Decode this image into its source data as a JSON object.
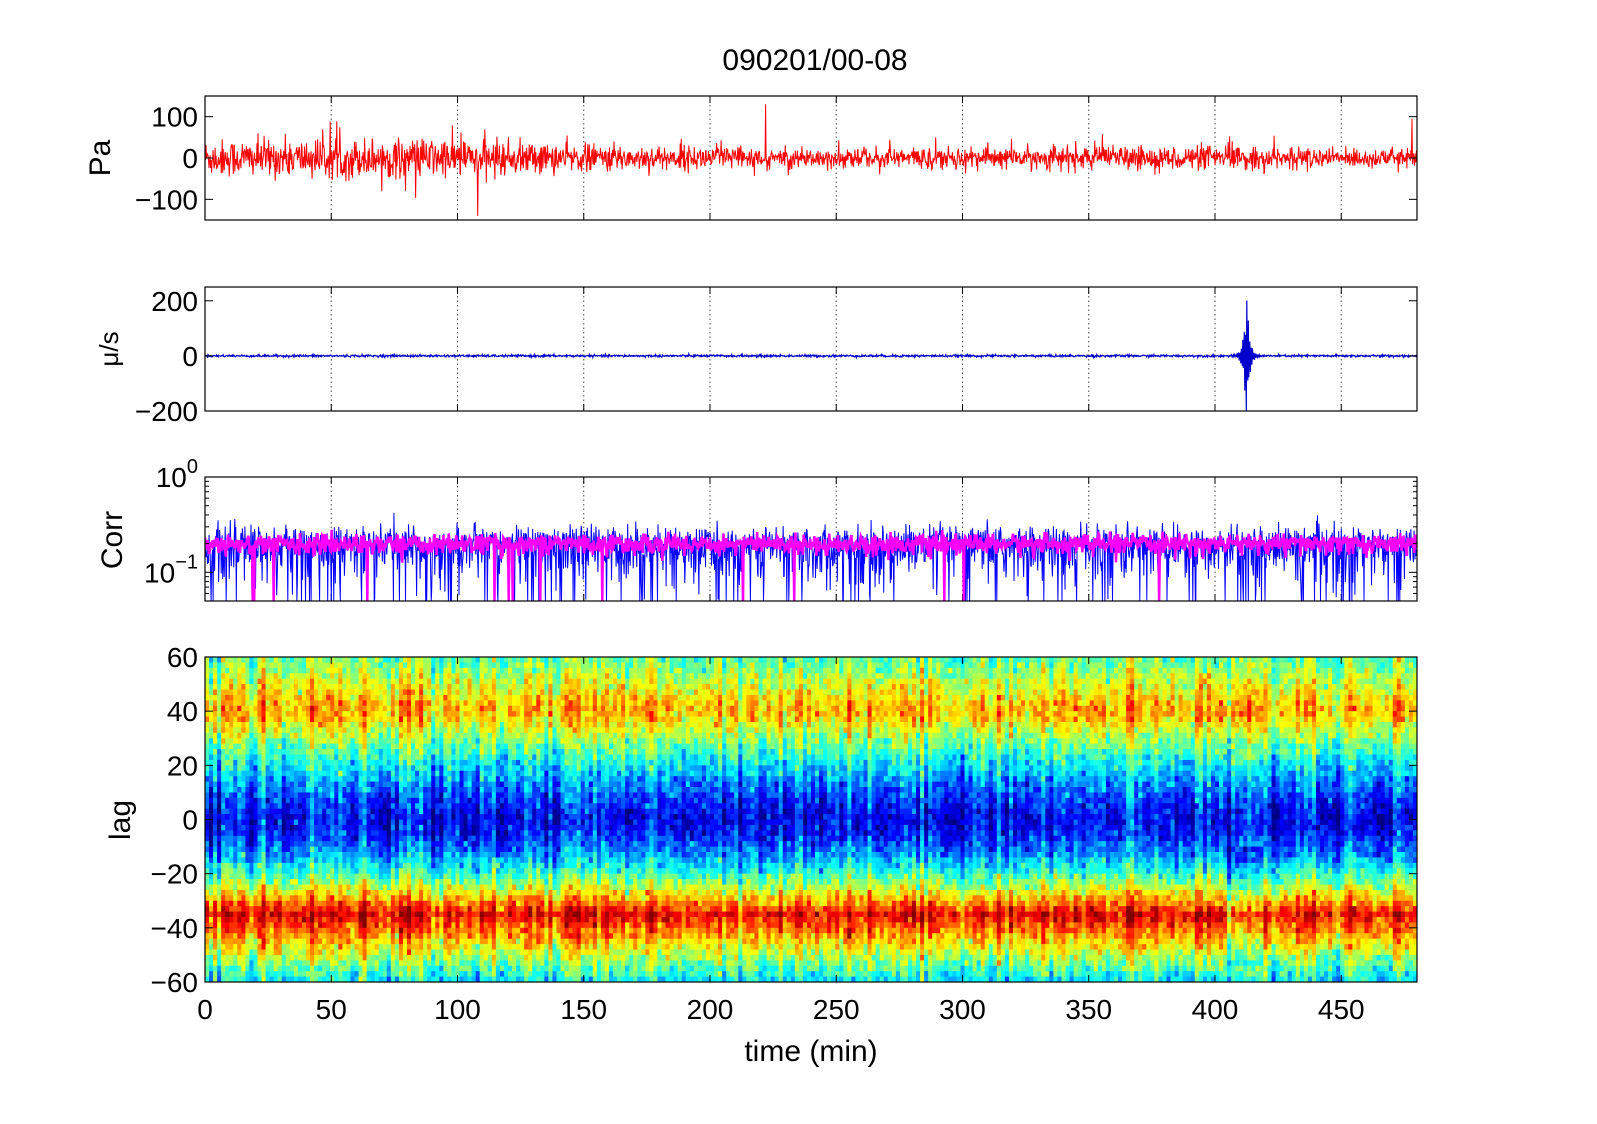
{
  "figure": {
    "title": "090201/00-08",
    "xlabel": "time (min)",
    "xlim": [
      0,
      480
    ],
    "xticks": [
      0,
      50,
      100,
      150,
      200,
      250,
      300,
      350,
      400,
      450
    ]
  },
  "chart_data": [
    {
      "type": "line",
      "name": "pressure",
      "ylabel": "Pa",
      "ylim": [
        -150,
        150
      ],
      "yticks": [
        100,
        0,
        -100
      ],
      "color": "#ff0000",
      "grid": true,
      "signal": {
        "kind": "noise",
        "base_amplitude": 45,
        "envelope": [
          [
            0,
            1.1
          ],
          [
            100,
            1.2
          ],
          [
            150,
            0.8
          ],
          [
            250,
            0.6
          ],
          [
            330,
            0.7
          ],
          [
            400,
            0.7
          ],
          [
            480,
            0.5
          ]
        ],
        "spikes": [
          [
            108,
            140
          ],
          [
            222,
            130
          ],
          [
            478,
            95
          ]
        ]
      }
    },
    {
      "type": "line",
      "name": "velocity",
      "ylabel": "μ/s",
      "ylim": [
        -200,
        250
      ],
      "yticks": [
        200,
        0,
        -200
      ],
      "color": "#0000cc",
      "grid": true,
      "signal": {
        "kind": "quiet-with-burst",
        "base_amplitude": 2,
        "burst_center": 412.5,
        "burst_peak": 250,
        "burst_width": 3
      }
    },
    {
      "type": "line",
      "name": "correlation",
      "ylabel": "Corr",
      "yscale": "log",
      "ylim": [
        0.05,
        1
      ],
      "yticks": [
        {
          "value": 1,
          "base": "10",
          "exp": "0"
        },
        {
          "value": 0.1,
          "base": "10",
          "exp": "−1"
        }
      ],
      "grid": true,
      "series": [
        {
          "color": "#0000ff",
          "center": 0.19,
          "spread": 0.12
        },
        {
          "color": "#ff00ff",
          "center": 0.2,
          "spread": 0.04
        }
      ]
    },
    {
      "type": "heatmap",
      "name": "lag",
      "ylabel": "lag",
      "ylim": [
        -60,
        60
      ],
      "yticks": [
        60,
        40,
        20,
        0,
        -20,
        -40,
        -60
      ],
      "colormap": "jet",
      "bands": [
        {
          "lag": 40,
          "value": 0.72
        },
        {
          "lag": 0,
          "value": 0.12
        },
        {
          "lag": -35,
          "value": 0.9
        }
      ]
    }
  ]
}
